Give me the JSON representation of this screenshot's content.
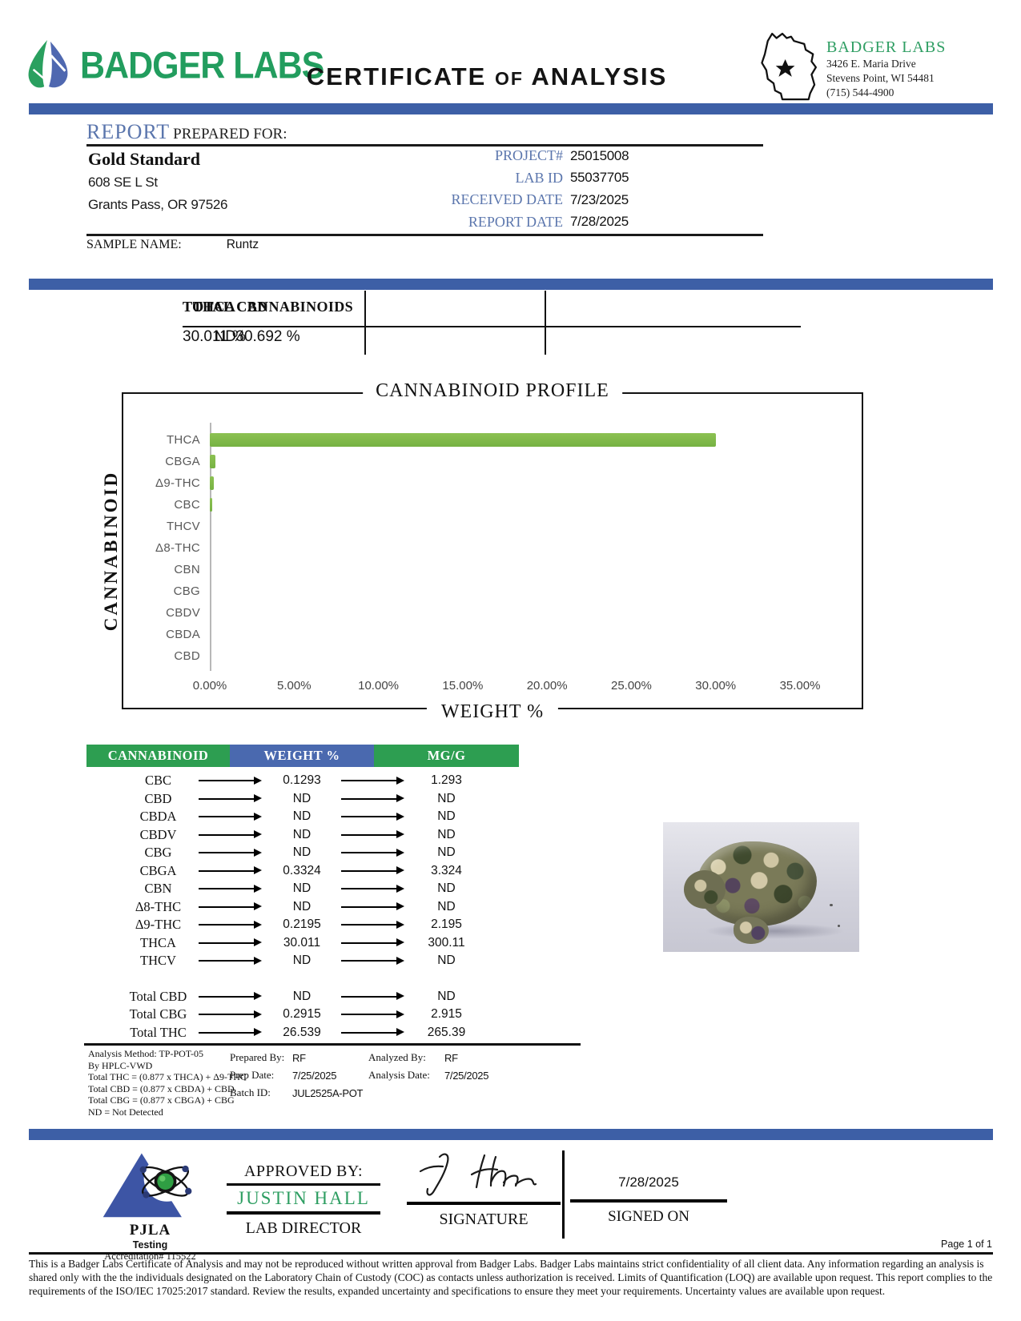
{
  "header": {
    "logo_text": "BADGER LABS",
    "title_part1": "CERTIFICATE",
    "title_part2": "OF",
    "title_part3": "ANALYSIS",
    "lab": {
      "name": "BADGER LABS",
      "address_line1": "3426 E. Maria Drive",
      "address_line2": "Stevens Point, WI 54481",
      "phone": "(715) 544-4900"
    }
  },
  "report": {
    "heading_primary": "REPORT",
    "heading_secondary": "PREPARED FOR:",
    "client": {
      "name": "Gold Standard",
      "address1": "608 SE L St",
      "address2": "Grants Pass, OR 97526"
    },
    "meta": [
      {
        "label": "PROJECT#",
        "value": "25015008"
      },
      {
        "label": "LAB ID",
        "value": "55037705"
      },
      {
        "label": "RECEIVED DATE",
        "value": "7/23/2025"
      },
      {
        "label": "REPORT DATE",
        "value": "7/28/2025"
      }
    ],
    "sample_label": "SAMPLE NAME:",
    "sample_value": "Runtz"
  },
  "summary": [
    {
      "label": "THCA",
      "value": "30.011 %"
    },
    {
      "label": "TOTAL CBD",
      "value": "ND"
    },
    {
      "label": "TOTAL CANNABINOIDS",
      "value": "30.692 %"
    }
  ],
  "chart_data": {
    "type": "bar",
    "orientation": "horizontal",
    "title": "CANNABINOID PROFILE",
    "xlabel": "WEIGHT %",
    "ylabel": "CANNABINOID",
    "categories": [
      "THCA",
      "CBGA",
      "Δ9-THC",
      "CBC",
      "THCV",
      "Δ8-THC",
      "CBN",
      "CBG",
      "CBDV",
      "CBDA",
      "CBD"
    ],
    "values": [
      30.011,
      0.3324,
      0.2195,
      0.1293,
      0,
      0,
      0,
      0,
      0,
      0,
      0
    ],
    "xlim": [
      0,
      35
    ],
    "xticks": [
      "0.00%",
      "5.00%",
      "10.00%",
      "15.00%",
      "20.00%",
      "25.00%",
      "30.00%",
      "35.00%"
    ],
    "bar_color": "#76b243",
    "grid": false,
    "legend": null
  },
  "results_table": {
    "headers": [
      {
        "label": "CANNABINOID",
        "color": "#2d9e51"
      },
      {
        "label": "WEIGHT %",
        "color": "#4a69af"
      },
      {
        "label": "MG/G",
        "color": "#2d9e51"
      }
    ],
    "rows": [
      {
        "name": "CBC",
        "weight": "0.1293",
        "mgg": "1.293"
      },
      {
        "name": "CBD",
        "weight": "ND",
        "mgg": "ND"
      },
      {
        "name": "CBDA",
        "weight": "ND",
        "mgg": "ND"
      },
      {
        "name": "CBDV",
        "weight": "ND",
        "mgg": "ND"
      },
      {
        "name": "CBG",
        "weight": "ND",
        "mgg": "ND"
      },
      {
        "name": "CBGA",
        "weight": "0.3324",
        "mgg": "3.324"
      },
      {
        "name": "CBN",
        "weight": "ND",
        "mgg": "ND"
      },
      {
        "name": "Δ8-THC",
        "weight": "ND",
        "mgg": "ND"
      },
      {
        "name": "Δ9-THC",
        "weight": "0.2195",
        "mgg": "2.195"
      },
      {
        "name": "THCA",
        "weight": "30.011",
        "mgg": "300.11"
      },
      {
        "name": "THCV",
        "weight": "ND",
        "mgg": "ND"
      }
    ],
    "totals": [
      {
        "name": "Total CBD",
        "weight": "ND",
        "mgg": "ND"
      },
      {
        "name": "Total CBG",
        "weight": "0.2915",
        "mgg": "2.915"
      },
      {
        "name": "Total THC",
        "weight": "26.539",
        "mgg": "265.39"
      }
    ]
  },
  "analysis_notes": {
    "method_lines": [
      "Analysis Method: TP-POT-05",
      "By HPLC-VWD",
      "Total THC = (0.877 x  THCA) + Δ9-THC",
      "Total CBD = (0.877 x  CBDA) + CBD",
      "Total CBG = (0.877 x  CBGA) + CBG",
      "ND = Not Detected"
    ],
    "prepared": [
      {
        "label": "Prepared By:",
        "value": "RF"
      },
      {
        "label": "Prep Date:",
        "value": "7/25/2025"
      },
      {
        "label": "Batch ID:",
        "value": "JUL2525A-POT"
      }
    ],
    "analyzed": [
      {
        "label": "Analyzed By:",
        "value": "RF"
      },
      {
        "label": "Analysis Date:",
        "value": "7/25/2025"
      }
    ]
  },
  "footer": {
    "pjla": {
      "name": "PJLA",
      "subtitle": "Testing",
      "accreditation": "Accreditation# 115522"
    },
    "approved_by_label": "APPROVED BY:",
    "approver_name": "JUSTIN HALL",
    "approver_title": "LAB DIRECTOR",
    "signature_label": "SIGNATURE",
    "signed_on_label": "SIGNED ON",
    "signed_date": "7/28/2025",
    "page_indicator": "Page 1 of 1",
    "disclaimer": "This is a Badger Labs Certificate of Analysis and may not be reproduced without written approval from Badger Labs. Badger Labs maintains strict confidentiality of all client data. Any information regarding an analysis is shared only with the the individuals designated on the Laboratory Chain of Custody (COC) as contacts unless authorization is received. Limits of Quantification (LOQ) are available upon request. This report complies to the requirements of the ISO/IEC 17025:2017 standard. Review the results, expanded uncertainty and specifications to ensure they meet your requirements. Uncertainty values are available upon request."
  },
  "colors": {
    "divider_blue": "#3d5fa6",
    "brand_green": "#229d5e",
    "label_steel_blue": "#5b76ad",
    "chart_bar_green": "#76b243",
    "table_header_green": "#2d9e51",
    "table_header_blue": "#4a69af",
    "approver_green": "#2e9e62"
  }
}
